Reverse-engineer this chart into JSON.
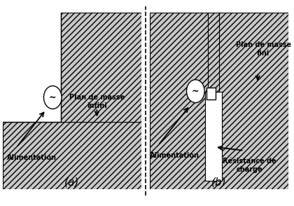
{
  "bg_color": "#ffffff",
  "hatch_face": "#c8c8c8",
  "hatch_pattern": "////",
  "label_a": "(a)",
  "label_b": "(b)",
  "text_plan_masse_infini": "Plan de masse\ninfini",
  "text_plan_masse_fini": "Plan de masse\nfini",
  "text_alimentation_a": "Alimentation",
  "text_alimentation_b": "Alimentation",
  "text_resistance": "Résistance de\ncharge",
  "font_size_main": 7,
  "font_size_ab": 11
}
